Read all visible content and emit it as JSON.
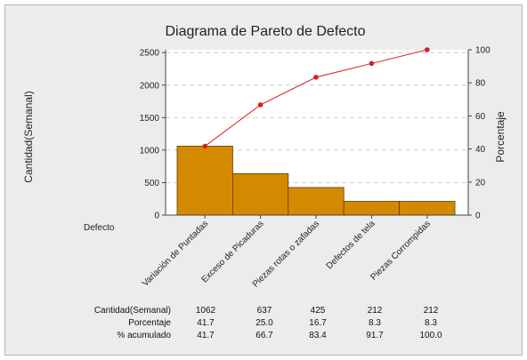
{
  "chart_data": {
    "type": "bar",
    "title": "Diagrama de Pareto de Defecto",
    "ylabel_left": "Cantidad(Semanal)",
    "ylabel_right": "Porcentaje",
    "xlabel": "Defecto",
    "categories": [
      "Variación de Puntadas",
      "Exceso de Picaduras",
      "Piezas rotas o zafadas",
      "Defectos de tela",
      "Piezas Corrompidas"
    ],
    "series": [
      {
        "values": [
          1062,
          637,
          425,
          212,
          212
        ]
      },
      {
        "values": [
          41.7,
          66.7,
          83.4,
          91.7,
          100.0
        ]
      }
    ],
    "ylim_left": [
      0,
      2544
    ],
    "ylim_right": [
      0,
      100
    ],
    "yticks_left": [
      "0",
      "500",
      "1000",
      "1500",
      "2000",
      "2500"
    ],
    "yticks_right": [
      "0",
      "20",
      "40",
      "60",
      "80",
      "100"
    ],
    "grid": true,
    "table": {
      "row_labels": [
        "Cantidad(Semanal)",
        "Porcentaje",
        "% acumulado"
      ],
      "rows": [
        [
          "1062",
          "637",
          "425",
          "212",
          "212"
        ],
        [
          "41.7",
          "25.0",
          "16.7",
          "8.3",
          "8.3"
        ],
        [
          "41.7",
          "66.7",
          "83.4",
          "91.7",
          "100.0"
        ]
      ]
    }
  },
  "colors": {
    "bar_fill": "#d48a00",
    "bar_stroke": "#5a3d00",
    "line": "#d62020",
    "grid": "#cfcfcf",
    "plot_bg": "#ffffff",
    "panel_bg": "#ececec"
  }
}
